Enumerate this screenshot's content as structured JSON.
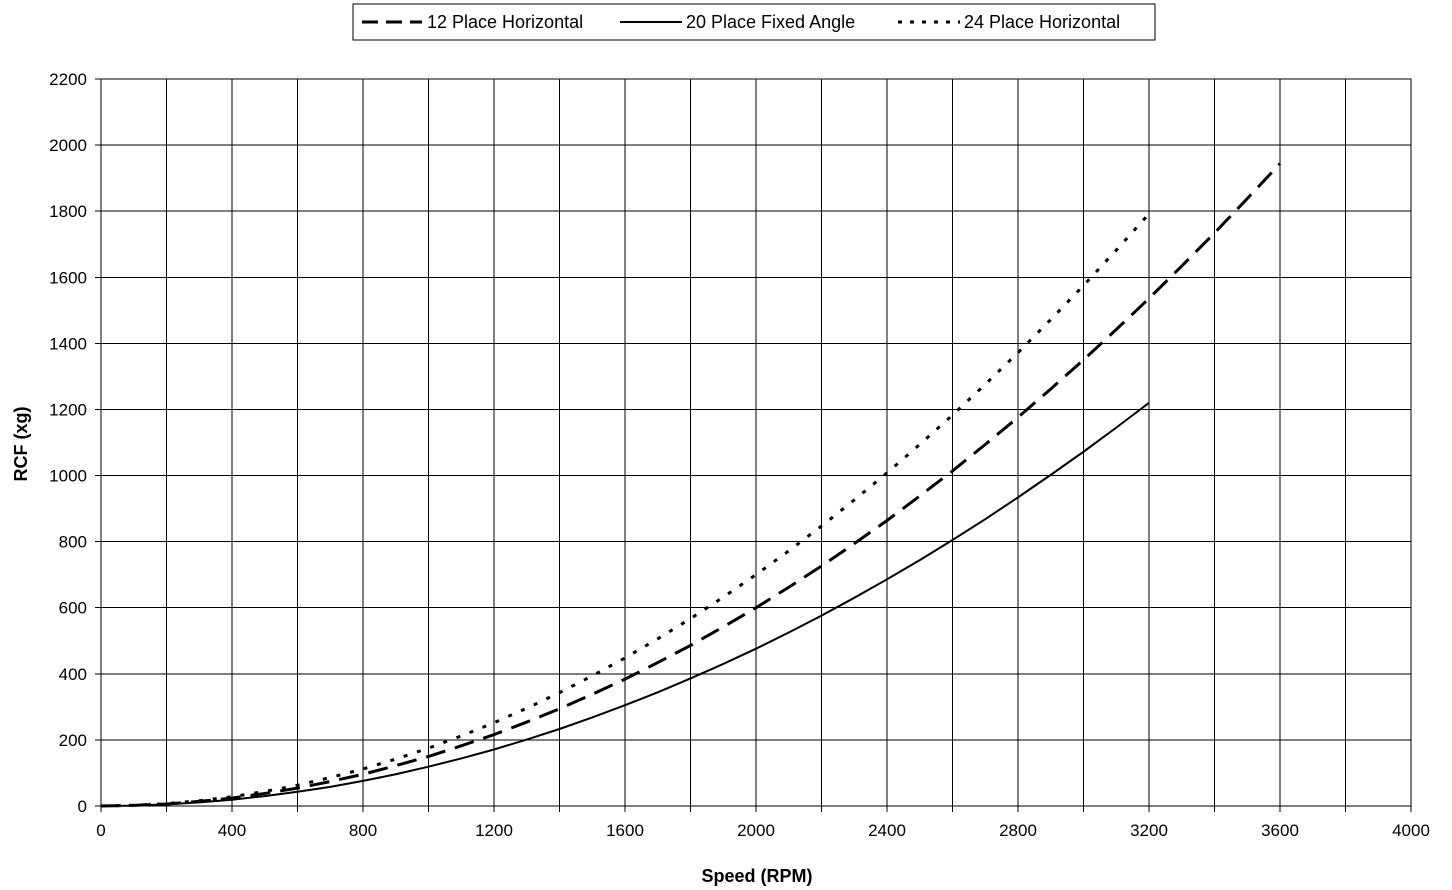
{
  "chart_data": {
    "type": "line",
    "title": "",
    "xlabel": "Speed (RPM)",
    "ylabel": "RCF (xg)",
    "xlim": [
      0,
      4000
    ],
    "ylim": [
      0,
      2200
    ],
    "xticks": [
      0,
      200,
      400,
      600,
      800,
      1000,
      1200,
      1400,
      1600,
      1800,
      2000,
      2200,
      2400,
      2600,
      2800,
      3000,
      3200,
      3400,
      3600,
      3800,
      4000
    ],
    "xtick_labels": [
      "0",
      "400",
      "800",
      "1200",
      "1600",
      "2000",
      "2400",
      "2800",
      "3200",
      "3600",
      "4000"
    ],
    "xtick_label_values": [
      0,
      400,
      800,
      1200,
      1600,
      2000,
      2400,
      2800,
      3200,
      3600,
      4000
    ],
    "yticks": [
      0,
      200,
      400,
      600,
      800,
      1000,
      1200,
      1400,
      1600,
      1800,
      2000,
      2200
    ],
    "ytick_labels": [
      "0",
      "200",
      "400",
      "600",
      "800",
      "1000",
      "1200",
      "1400",
      "1600",
      "1800",
      "2000",
      "2200"
    ],
    "grid": true,
    "legend_position": "top-center",
    "series": [
      {
        "name": "12 Place Horizontal",
        "style": "dashed",
        "x": [
          0,
          100,
          200,
          300,
          400,
          500,
          600,
          700,
          800,
          900,
          1000,
          1100,
          1200,
          1300,
          1400,
          1500,
          1600,
          1700,
          1800,
          1900,
          2000,
          2100,
          2200,
          2300,
          2400,
          2500,
          2600,
          2700,
          2800,
          2900,
          3000,
          3100,
          3200,
          3300,
          3400,
          3500,
          3600
        ],
        "y": [
          0,
          2,
          6,
          14,
          24,
          38,
          54,
          74,
          96,
          122,
          150,
          182,
          216,
          254,
          294,
          338,
          384,
          434,
          486,
          542,
          600,
          662,
          726,
          794,
          864,
          938,
          1014,
          1094,
          1176,
          1262,
          1350,
          1442,
          1536,
          1634,
          1734,
          1838,
          1944
        ]
      },
      {
        "name": "20 Place Fixed Angle",
        "style": "solid",
        "x": [
          0,
          100,
          200,
          300,
          400,
          500,
          600,
          700,
          800,
          900,
          1000,
          1100,
          1200,
          1300,
          1400,
          1500,
          1600,
          1700,
          1800,
          1900,
          2000,
          2100,
          2200,
          2300,
          2400,
          2500,
          2600,
          2700,
          2800,
          2900,
          3000,
          3100,
          3200
        ],
        "y": [
          0,
          1,
          5,
          11,
          19,
          30,
          43,
          58,
          76,
          96,
          119,
          144,
          171,
          201,
          233,
          268,
          305,
          344,
          386,
          430,
          476,
          525,
          576,
          630,
          686,
          744,
          805,
          868,
          934,
          1002,
          1072,
          1145,
          1220
        ]
      },
      {
        "name": "24 Place Horizontal",
        "style": "dotted",
        "x": [
          0,
          100,
          200,
          300,
          400,
          500,
          600,
          700,
          800,
          900,
          1000,
          1100,
          1200,
          1300,
          1400,
          1500,
          1600,
          1700,
          1800,
          1900,
          2000,
          2100,
          2200,
          2300,
          2400,
          2500,
          2600,
          2700,
          2800,
          2900,
          3000,
          3100,
          3200
        ],
        "y": [
          0,
          2,
          7,
          16,
          28,
          44,
          63,
          86,
          112,
          142,
          175,
          212,
          252,
          296,
          343,
          394,
          448,
          506,
          567,
          632,
          700,
          772,
          847,
          926,
          1008,
          1094,
          1183,
          1276,
          1372,
          1472,
          1575,
          1682,
          1792
        ]
      }
    ]
  }
}
